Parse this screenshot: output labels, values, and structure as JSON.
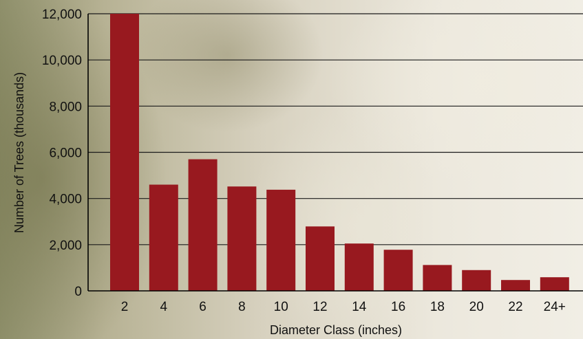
{
  "chart_data": {
    "type": "bar",
    "title": "",
    "xlabel": "Diameter Class (inches)",
    "ylabel": "Number of Trees (thousands)",
    "categories": [
      "2",
      "4",
      "6",
      "8",
      "10",
      "12",
      "14",
      "16",
      "18",
      "20",
      "22",
      "24+"
    ],
    "values": [
      12000,
      4600,
      5700,
      4520,
      4380,
      2790,
      2050,
      1780,
      1120,
      900,
      470,
      590
    ],
    "ylim": [
      0,
      12000
    ],
    "yticks": [
      0,
      2000,
      4000,
      6000,
      8000,
      10000,
      12000
    ],
    "ytick_labels": [
      "0",
      "2,000",
      "4,000",
      "6,000",
      "8,000",
      "10,000",
      "12,000"
    ],
    "grid": true,
    "legend": "none",
    "bar_color": "#98191f"
  }
}
